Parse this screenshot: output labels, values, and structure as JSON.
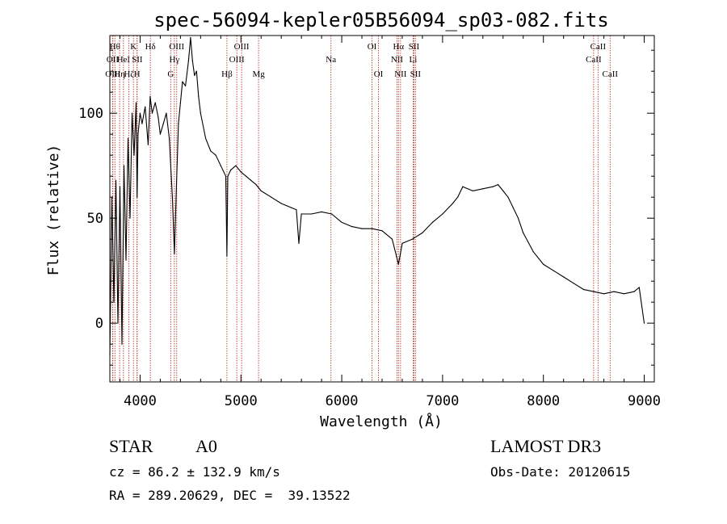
{
  "chart_data": {
    "type": "line",
    "title": "spec-56094-kepler05B56094_sp03-082.fits",
    "xlabel": "Wavelength (Å)",
    "ylabel": "Flux (relative)",
    "xlim": [
      3700,
      9100
    ],
    "ylim": [
      -28,
      137
    ],
    "xticks": [
      4000,
      5000,
      6000,
      7000,
      8000,
      9000
    ],
    "xtick_labels": [
      "4000",
      "5000",
      "6000",
      "7000",
      "8000",
      "9000"
    ],
    "yticks": [
      0,
      50,
      100
    ],
    "ytick_labels": [
      "0",
      "50",
      "100"
    ],
    "series": [
      {
        "name": "flux",
        "x": [
          3700,
          3720,
          3740,
          3760,
          3780,
          3800,
          3820,
          3840,
          3860,
          3880,
          3900,
          3920,
          3940,
          3960,
          3970,
          3980,
          4000,
          4020,
          4050,
          4080,
          4100,
          4120,
          4150,
          4180,
          4200,
          4230,
          4260,
          4290,
          4320,
          4340,
          4360,
          4380,
          4400,
          4420,
          4450,
          4480,
          4500,
          4520,
          4540,
          4560,
          4580,
          4600,
          4650,
          4700,
          4750,
          4800,
          4850,
          4861,
          4870,
          4900,
          4950,
          5000,
          5050,
          5100,
          5150,
          5200,
          5300,
          5400,
          5500,
          5550,
          5575,
          5600,
          5700,
          5800,
          5900,
          6000,
          6100,
          6200,
          6300,
          6400,
          6500,
          6563,
          6600,
          6700,
          6800,
          6900,
          7000,
          7100,
          7150,
          7200,
          7300,
          7400,
          7500,
          7550,
          7600,
          7650,
          7700,
          7750,
          7800,
          7900,
          8000,
          8100,
          8200,
          8300,
          8400,
          8500,
          8600,
          8700,
          8800,
          8900,
          8950,
          9000
        ],
        "y": [
          -15,
          60,
          10,
          68,
          0,
          65,
          -10,
          75,
          30,
          88,
          50,
          100,
          80,
          105,
          60,
          90,
          100,
          95,
          103,
          85,
          108,
          100,
          105,
          98,
          90,
          95,
          100,
          88,
          60,
          33,
          65,
          95,
          105,
          115,
          113,
          125,
          136,
          125,
          118,
          120,
          108,
          100,
          88,
          82,
          80,
          75,
          70,
          32,
          70,
          73,
          75,
          72,
          70,
          68,
          66,
          63,
          60,
          57,
          55,
          54,
          38,
          52,
          52,
          53,
          52,
          48,
          46,
          45,
          45,
          44,
          40,
          28,
          38,
          40,
          43,
          48,
          52,
          57,
          60,
          65,
          63,
          64,
          65,
          66,
          63,
          60,
          55,
          50,
          43,
          34,
          28,
          25,
          22,
          19,
          16,
          15,
          14,
          15,
          14,
          15,
          17,
          0
        ]
      }
    ],
    "lines": [
      {
        "wave": 3750,
        "label": "Hθ",
        "row": 1
      },
      {
        "wave": 3727,
        "label": "OII",
        "row": 2
      },
      {
        "wave": 3730,
        "label": "OIII",
        "row": 3
      },
      {
        "wave": 3797,
        "label": "Hη",
        "row": 3
      },
      {
        "wave": 3835,
        "label": "HeI",
        "row": 2
      },
      {
        "wave": 3889,
        "label": "Hζ",
        "row": 3
      },
      {
        "wave": 3934,
        "label": "K",
        "row": 1
      },
      {
        "wave": 3969,
        "label": "H",
        "row": 3
      },
      {
        "wave": 3971,
        "label": "SII",
        "row": 2
      },
      {
        "wave": 4102,
        "label": "Hδ",
        "row": 1
      },
      {
        "wave": 4304,
        "label": "G",
        "row": 3
      },
      {
        "wave": 4340,
        "label": "Hγ",
        "row": 2
      },
      {
        "wave": 4363,
        "label": "OIII",
        "row": 1
      },
      {
        "wave": 4861,
        "label": "Hβ",
        "row": 3
      },
      {
        "wave": 4959,
        "label": "OIII",
        "row": 2
      },
      {
        "wave": 5007,
        "label": "OIII",
        "row": 1
      },
      {
        "wave": 5175,
        "label": "Mg",
        "row": 3
      },
      {
        "wave": 5893,
        "label": "Na",
        "row": 2
      },
      {
        "wave": 6300,
        "label": "OI",
        "row": 1
      },
      {
        "wave": 6364,
        "label": "OI",
        "row": 3
      },
      {
        "wave": 6548,
        "label": "NII",
        "row": 2
      },
      {
        "wave": 6563,
        "label": "Hα",
        "row": 1
      },
      {
        "wave": 6583,
        "label": "NII",
        "row": 3
      },
      {
        "wave": 6708,
        "label": "Li",
        "row": 2
      },
      {
        "wave": 6716,
        "label": "SII",
        "row": 1
      },
      {
        "wave": 6731,
        "label": "SII",
        "row": 3
      },
      {
        "wave": 8498,
        "label": "CaII",
        "row": 2
      },
      {
        "wave": 8542,
        "label": "CaII",
        "row": 1
      },
      {
        "wave": 8662,
        "label": "CaII",
        "row": 3
      }
    ]
  },
  "info": {
    "object_type": "STAR",
    "subclass": "A0",
    "survey": "LAMOST DR3",
    "cz_text": "cz = 86.2 ± 132.9 km/s",
    "obs_date_text": "Obs-Date: 20120615",
    "coords_text": "RA = 289.20629, DEC =  39.13522"
  },
  "colors": {
    "spectrum": "#000000",
    "line_markers": "#c0392b",
    "axes": "#000000",
    "background": "#ffffff"
  }
}
